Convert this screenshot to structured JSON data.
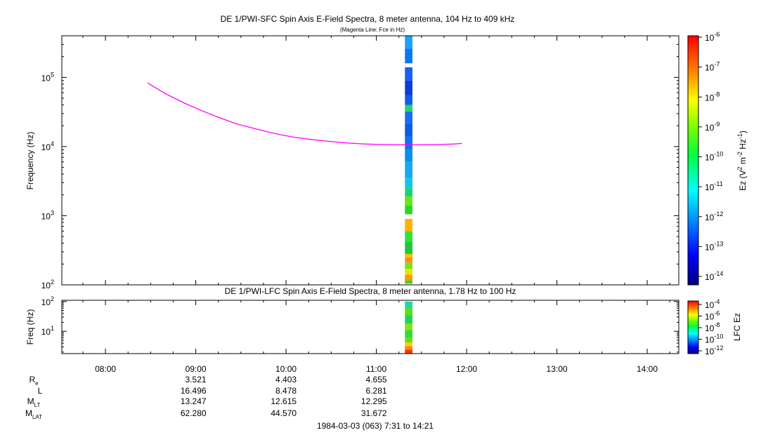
{
  "chart_data": [
    {
      "type": "heatmap",
      "title": "DE 1/PWI-SFC  Spin Axis E-Field Spectra, 8 meter antenna, 104 Hz to 409 kHz",
      "subtitle": "(Magenta Line: Fce in Hz)",
      "ylabel": "Frequency (Hz)",
      "yscale": "log",
      "ylim": [
        100,
        400000
      ],
      "yticks": [
        {
          "base": "10",
          "exp": "2",
          "value": 100
        },
        {
          "base": "10",
          "exp": "3",
          "value": 1000
        },
        {
          "base": "10",
          "exp": "4",
          "value": 10000
        },
        {
          "base": "10",
          "exp": "5",
          "value": 100000
        }
      ],
      "xlim": [
        "07:31",
        "14:21"
      ],
      "colorbar": {
        "label": "Ez (V2 m-2 Hz-1)",
        "range": [
          1e-14,
          1e-06
        ],
        "ticks": [
          {
            "base": "10",
            "exp": "-6"
          },
          {
            "base": "10",
            "exp": "-7"
          },
          {
            "base": "10",
            "exp": "-8"
          },
          {
            "base": "10",
            "exp": "-9"
          },
          {
            "base": "10",
            "exp": "-10"
          },
          {
            "base": "10",
            "exp": "-11"
          },
          {
            "base": "10",
            "exp": "-12"
          },
          {
            "base": "10",
            "exp": "-13"
          },
          {
            "base": "10",
            "exp": "-14"
          }
        ]
      },
      "spectrogram_strip": {
        "time_start": "11:19",
        "time_end": "11:24",
        "segments": [
          {
            "f_lo": 104,
            "f_hi": 115,
            "color": "#31d92a"
          },
          {
            "f_lo": 115,
            "f_hi": 140,
            "color": "#ff9900"
          },
          {
            "f_lo": 140,
            "f_hi": 170,
            "color": "#e6e600"
          },
          {
            "f_lo": 170,
            "f_hi": 210,
            "color": "#7fe01a"
          },
          {
            "f_lo": 210,
            "f_hi": 250,
            "color": "#ff8c1a"
          },
          {
            "f_lo": 250,
            "f_hi": 280,
            "color": "#f2c200"
          },
          {
            "f_lo": 280,
            "f_hi": 420,
            "color": "#1ec83c"
          },
          {
            "f_lo": 420,
            "f_hi": 600,
            "color": "#33e033"
          },
          {
            "f_lo": 600,
            "f_hi": 900,
            "color": "#ffb300"
          },
          {
            "f_lo": 1050,
            "f_hi": 1400,
            "color": "#2bd52b"
          },
          {
            "f_lo": 1400,
            "f_hi": 1900,
            "color": "#66e619"
          },
          {
            "f_lo": 1900,
            "f_hi": 2500,
            "color": "#1ad27a"
          },
          {
            "f_lo": 2500,
            "f_hi": 3500,
            "color": "#11c8e0"
          },
          {
            "f_lo": 3500,
            "f_hi": 6000,
            "color": "#1aa8f0"
          },
          {
            "f_lo": 6000,
            "f_hi": 9000,
            "color": "#0b8fe8"
          },
          {
            "f_lo": 9000,
            "f_hi": 14000,
            "color": "#1270f0"
          },
          {
            "f_lo": 14000,
            "f_hi": 22000,
            "color": "#0e5ce6"
          },
          {
            "f_lo": 22000,
            "f_hi": 32000,
            "color": "#1a6cf2"
          },
          {
            "f_lo": 32000,
            "f_hi": 40000,
            "color": "#24d26e"
          },
          {
            "f_lo": 40000,
            "f_hi": 55000,
            "color": "#0f5fe6"
          },
          {
            "f_lo": 55000,
            "f_hi": 90000,
            "color": "#0a3fd6"
          },
          {
            "f_lo": 90000,
            "f_hi": 140000,
            "color": "#1b5ff0"
          },
          {
            "f_lo": 160000,
            "f_hi": 260000,
            "color": "#0b78f0"
          },
          {
            "f_lo": 260000,
            "f_hi": 400000,
            "color": "#1fa0ff"
          }
        ]
      },
      "series": [
        {
          "name": "Fce in Hz",
          "color": "#ff00ff",
          "points": [
            [
              "08:28",
              83000
            ],
            [
              "08:40",
              58000
            ],
            [
              "08:52",
              43000
            ],
            [
              "09:04",
              33000
            ],
            [
              "09:16",
              26000
            ],
            [
              "09:28",
              21000
            ],
            [
              "09:40",
              18000
            ],
            [
              "09:52",
              15500
            ],
            [
              "10:04",
              13800
            ],
            [
              "10:16",
              12700
            ],
            [
              "10:28",
              11900
            ],
            [
              "10:40",
              11300
            ],
            [
              "10:52",
              10900
            ],
            [
              "11:04",
              10700
            ],
            [
              "11:16",
              10600
            ],
            [
              "11:28",
              10600
            ],
            [
              "11:40",
              10650
            ],
            [
              "11:52",
              10900
            ],
            [
              "11:57",
              11100
            ]
          ]
        }
      ]
    },
    {
      "type": "heatmap",
      "title": "DE 1/PWI-LFC  Spin Axis E-Field Spectra, 8 meter antenna, 1.78 Hz to 100 Hz",
      "ylabel": "Freq (Hz)",
      "yscale": "log",
      "ylim": [
        1.78,
        110
      ],
      "yticks": [
        {
          "base": "10",
          "exp": "1",
          "value": 10
        },
        {
          "base": "10",
          "exp": "2",
          "value": 100
        }
      ],
      "xlim": [
        "07:31",
        "14:21"
      ],
      "colorbar": {
        "label": "LFC Ez",
        "range": [
          1e-12,
          0.0001
        ],
        "ticks": [
          {
            "base": "10",
            "exp": "-4"
          },
          {
            "base": "10",
            "exp": "-6"
          },
          {
            "base": "10",
            "exp": "-8"
          },
          {
            "base": "10",
            "exp": "-10"
          },
          {
            "base": "10",
            "exp": "-12"
          }
        ]
      },
      "spectrogram_strip": {
        "time_start": "11:19",
        "time_end": "11:24",
        "segments": [
          {
            "f_lo": 1.78,
            "f_hi": 2.4,
            "color": "#ff3300"
          },
          {
            "f_lo": 2.4,
            "f_hi": 3.2,
            "color": "#ff8c00"
          },
          {
            "f_lo": 3.2,
            "f_hi": 4.2,
            "color": "#ffcc00"
          },
          {
            "f_lo": 4.2,
            "f_hi": 6,
            "color": "#66dd22"
          },
          {
            "f_lo": 6,
            "f_hi": 11,
            "color": "#33dd33"
          },
          {
            "f_lo": 11,
            "f_hi": 18,
            "color": "#88e018"
          },
          {
            "f_lo": 18,
            "f_hi": 35,
            "color": "#22d455"
          },
          {
            "f_lo": 35,
            "f_hi": 60,
            "color": "#55e022"
          },
          {
            "f_lo": 60,
            "f_hi": 100,
            "color": "#1ed8a0"
          }
        ]
      }
    }
  ],
  "x_ticks": [
    "08:00",
    "09:00",
    "10:00",
    "11:00",
    "12:00",
    "13:00",
    "14:00"
  ],
  "ephemeris": {
    "row_labels": [
      {
        "main": "R",
        "sub": "e"
      },
      {
        "main": "L",
        "sub": ""
      },
      {
        "main": "M",
        "sub": "LT"
      },
      {
        "main": "M",
        "sub": "LAT"
      }
    ],
    "columns": [
      {
        "time": "09:00",
        "values": [
          "3.521",
          "16.496",
          "13.247",
          "62.280"
        ]
      },
      {
        "time": "10:00",
        "values": [
          "4.403",
          "8.478",
          "12.615",
          "44.570"
        ]
      },
      {
        "time": "11:00",
        "values": [
          "4.655",
          "6.281",
          "12.295",
          "31.672"
        ]
      }
    ]
  },
  "footer": "1984-03-03 (063) 7:31 to 14:21"
}
